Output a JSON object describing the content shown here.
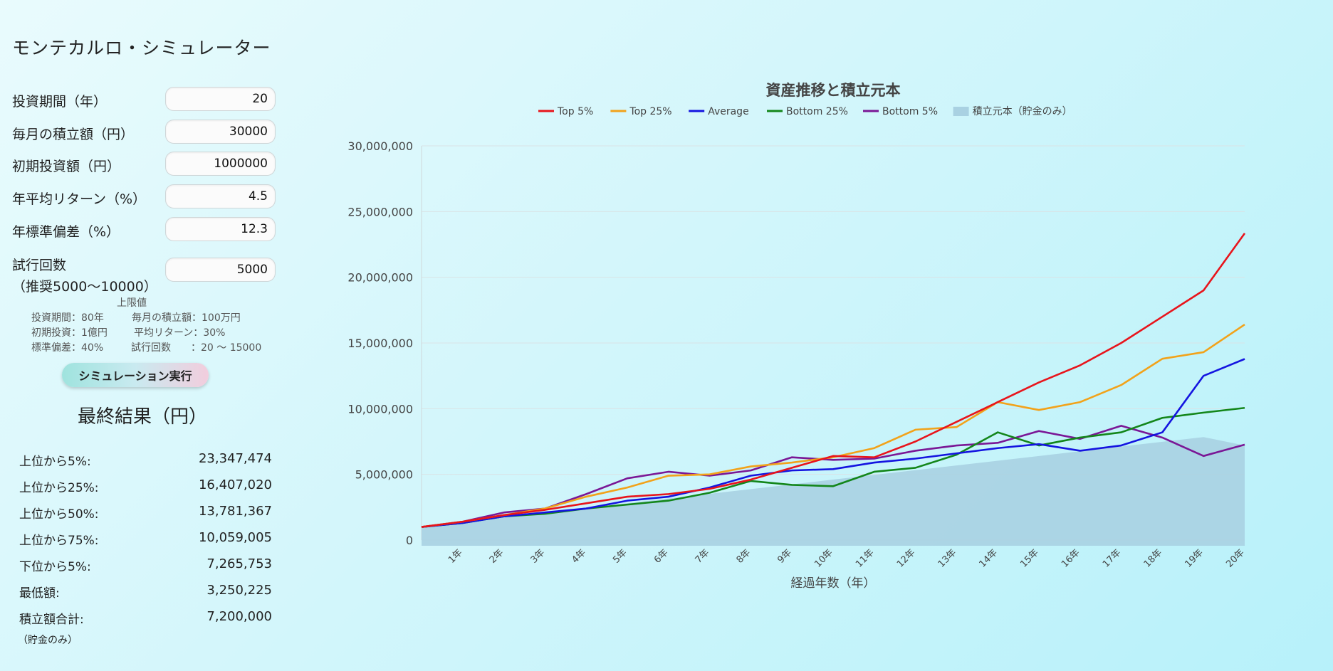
{
  "app": {
    "title": "モンテカルロ・シミュレーター"
  },
  "form": {
    "fields": [
      {
        "label": "投資期間（年）",
        "value": "20"
      },
      {
        "label": "毎月の積立額（円）",
        "value": "30000"
      },
      {
        "label": "初期投資額（円）",
        "value": "1000000"
      },
      {
        "label": "年平均リターン（%）",
        "value": "4.5"
      },
      {
        "label": "年標準偏差（%）",
        "value": "12.3"
      },
      {
        "label": "試行回数",
        "label2": "（推奨5000〜10000）",
        "value": "5000"
      }
    ]
  },
  "limits": {
    "title": "上限値",
    "rows": [
      [
        "投資期間：80年",
        "毎月の積立額：100万円"
      ],
      [
        "初期投資：1億円",
        "平均リターン：30%"
      ],
      [
        "標準偏差：40%",
        "試行回数　　：20 〜 15000"
      ]
    ]
  },
  "run_button_label": "シミュレーション実行",
  "results": {
    "title": "最終結果（円）",
    "rows": [
      {
        "label": "上位から5%:",
        "value": "23,347,474"
      },
      {
        "label": "上位から25%:",
        "value": "16,407,020"
      },
      {
        "label": "上位から50%:",
        "value": "13,781,367"
      },
      {
        "label": "上位から75%:",
        "value": "10,059,005"
      },
      {
        "label": "下位から5%:",
        "value": "7,265,753"
      },
      {
        "label": "最低額:",
        "value": "3,250,225"
      },
      {
        "label": "積立額合計:",
        "value": "7,200,000"
      }
    ],
    "note": "（貯金のみ）"
  },
  "chart_data": {
    "type": "line",
    "title": "資産推移と積立元本",
    "xlabel": "経過年数（年）",
    "ylabel": "",
    "ylim": [
      0,
      30000000
    ],
    "yticks": [
      "0",
      "5,000,000",
      "10,000,000",
      "15,000,000",
      "20,000,000",
      "25,000,000",
      "30,000,000"
    ],
    "ytick_values": [
      0,
      5000000,
      10000000,
      15000000,
      20000000,
      25000000,
      30000000
    ],
    "x": [
      0,
      1,
      2,
      3,
      4,
      5,
      6,
      7,
      8,
      9,
      10,
      11,
      12,
      13,
      14,
      15,
      16,
      17,
      18,
      19,
      20
    ],
    "xticks": [
      "1年",
      "2年",
      "3年",
      "4年",
      "5年",
      "6年",
      "7年",
      "8年",
      "9年",
      "10年",
      "11年",
      "12年",
      "13年",
      "14年",
      "15年",
      "16年",
      "17年",
      "18年",
      "19年",
      "20年"
    ],
    "grid": true,
    "legend_position": "top",
    "series": [
      {
        "name": "Top 5%",
        "color": "#e8141b",
        "values": [
          1000000,
          1400000,
          1900000,
          2300000,
          2800000,
          3300000,
          3500000,
          3900000,
          4600000,
          5500000,
          6400000,
          6300000,
          7500000,
          9000000,
          10500000,
          12000000,
          13300000,
          15000000,
          17000000,
          19000000,
          23347474
        ]
      },
      {
        "name": "Top 25%",
        "color": "#f2a21a",
        "values": [
          1000000,
          1400000,
          1900000,
          2400000,
          3300000,
          4000000,
          4900000,
          5000000,
          5600000,
          5900000,
          6300000,
          7000000,
          8400000,
          8600000,
          10500000,
          9900000,
          10500000,
          11800000,
          13800000,
          14300000,
          16407020
        ]
      },
      {
        "name": "Average",
        "color": "#1414e0",
        "values": [
          1000000,
          1300000,
          1800000,
          2100000,
          2400000,
          3000000,
          3300000,
          4000000,
          4900000,
          5300000,
          5400000,
          5900000,
          6200000,
          6600000,
          7000000,
          7300000,
          6800000,
          7200000,
          8200000,
          12500000,
          13781367
        ]
      },
      {
        "name": "Bottom 25%",
        "color": "#13861a",
        "values": [
          1000000,
          1300000,
          1800000,
          2000000,
          2400000,
          2700000,
          3000000,
          3600000,
          4500000,
          4200000,
          4100000,
          5200000,
          5500000,
          6500000,
          8200000,
          7200000,
          7800000,
          8200000,
          9300000,
          9700000,
          10059005
        ]
      },
      {
        "name": "Bottom 5%",
        "color": "#7a1796",
        "values": [
          1000000,
          1400000,
          2100000,
          2400000,
          3500000,
          4700000,
          5200000,
          4900000,
          5300000,
          6300000,
          6100000,
          6200000,
          6800000,
          7200000,
          7400000,
          8300000,
          7700000,
          8700000,
          7800000,
          6400000,
          7265753
        ]
      },
      {
        "name": "積立元本（貯金のみ）",
        "type": "area",
        "color": "#a9d1e2",
        "values": [
          1000000,
          1360000,
          1720000,
          2080000,
          2440000,
          2800000,
          3160000,
          3520000,
          3880000,
          4240000,
          4600000,
          4960000,
          5320000,
          5680000,
          6040000,
          6400000,
          6760000,
          7120000,
          7480000,
          7840000,
          7200000
        ]
      }
    ]
  }
}
